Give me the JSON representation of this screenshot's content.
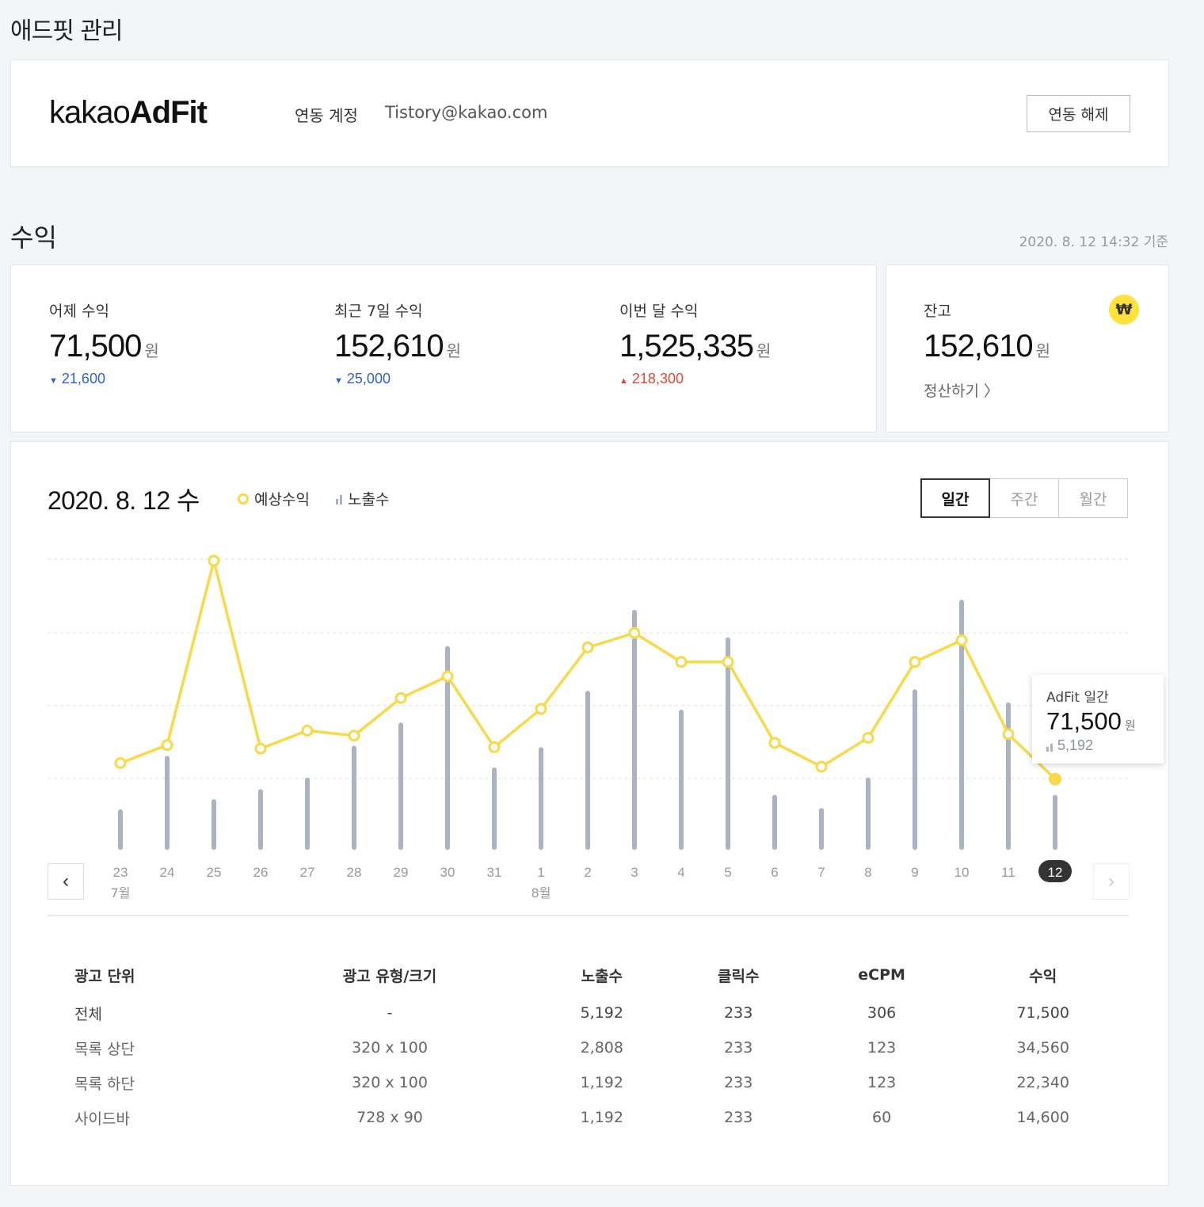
{
  "page_title": "애드핏 관리",
  "account": {
    "logo_light": "kakao",
    "logo_bold": "AdFit",
    "label": "연동 계정",
    "email": "Tistory@kakao.com",
    "unlink_label": "연동 해제"
  },
  "revenue": {
    "title": "수익",
    "updated": "2020. 8. 12 14:32 기준",
    "unit": "원",
    "stats": [
      {
        "label": "어제 수익",
        "value": "71,500",
        "delta": "21,600",
        "direction": "down"
      },
      {
        "label": "최근 7일 수익",
        "value": "152,610",
        "delta": "25,000",
        "direction": "down"
      },
      {
        "label": "이번 달 수익",
        "value": "1,525,335",
        "delta": "218,300",
        "direction": "up"
      }
    ],
    "balance": {
      "label": "잔고",
      "value": "152,610",
      "icon": "₩",
      "settle_label": "정산하기 〉"
    }
  },
  "chart": {
    "date_title": "2020. 8. 12 수",
    "legend_revenue": "예상수익",
    "legend_impressions": "노출수",
    "periods": [
      "일간",
      "주간",
      "월간"
    ],
    "active_period": "일간",
    "prev_icon": "‹",
    "next_icon": "›",
    "tooltip": {
      "title": "AdFit 일간",
      "value": "71,500",
      "unit": "원",
      "impressions": "5,192"
    },
    "colors": {
      "line": "#f7d94a",
      "bar": "#aab3bf",
      "grid": "#dcdde0"
    }
  },
  "chart_data": {
    "type": "bar+line",
    "categories": [
      "23",
      "24",
      "25",
      "26",
      "27",
      "28",
      "29",
      "30",
      "31",
      "1",
      "2",
      "3",
      "4",
      "5",
      "6",
      "7",
      "8",
      "9",
      "10",
      "11",
      "12"
    ],
    "month_labels": [
      {
        "index": 0,
        "label": "7월"
      },
      {
        "index": 9,
        "label": "8월"
      }
    ],
    "selected_index": 20,
    "series": [
      {
        "name": "예상수익",
        "kind": "line",
        "values": [
          12,
          14.5,
          40,
          14,
          16.5,
          15.8,
          21,
          24,
          14.2,
          19.5,
          28,
          30,
          26,
          26,
          14.8,
          11.5,
          15.5,
          26,
          29,
          16,
          9.8
        ]
      },
      {
        "name": "노출수",
        "kind": "bar",
        "values": [
          28,
          65,
          35,
          42,
          50,
          72,
          88,
          141,
          57,
          71,
          110,
          166,
          97,
          147,
          38,
          29,
          50,
          111,
          173,
          102,
          38
        ]
      }
    ],
    "ylim_line": [
      0,
      40
    ],
    "ylim_bar": [
      0,
      200
    ],
    "grid": true
  },
  "units_table": {
    "headers": [
      "광고 단위",
      "광고 유형/크기",
      "노출수",
      "클릭수",
      "eCPM",
      "수익"
    ],
    "rows": [
      [
        "전체",
        "-",
        "5,192",
        "233",
        "306",
        "71,500"
      ],
      [
        "목록 상단",
        "320 x 100",
        "2,808",
        "233",
        "123",
        "34,560"
      ],
      [
        "목록 하단",
        "320 x 100",
        "1,192",
        "233",
        "123",
        "22,340"
      ],
      [
        "사이드바",
        "728 x 90",
        "1,192",
        "233",
        "60",
        "14,600"
      ]
    ]
  }
}
